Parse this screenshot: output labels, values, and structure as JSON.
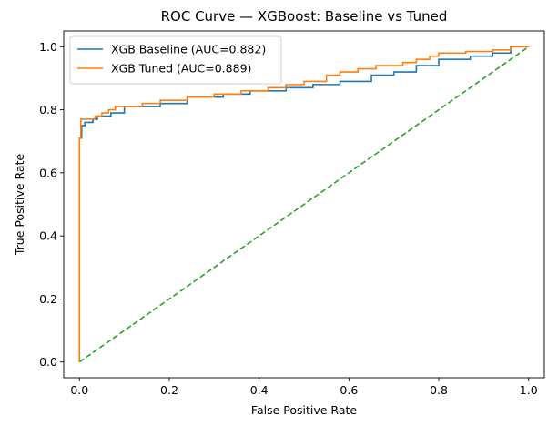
{
  "chart_data": {
    "type": "line",
    "title": "ROC Curve — XGBoost: Baseline vs Tuned",
    "xlabel": "False Positive Rate",
    "ylabel": "True Positive Rate",
    "xlim": [
      -0.035,
      1.035
    ],
    "ylim": [
      -0.05,
      1.05
    ],
    "xticks": [
      0.0,
      0.2,
      0.4,
      0.6,
      0.8,
      1.0
    ],
    "xtick_labels": [
      "0.0",
      "0.2",
      "0.4",
      "0.6",
      "0.8",
      "1.0"
    ],
    "yticks": [
      0.0,
      0.2,
      0.4,
      0.6,
      0.8,
      1.0
    ],
    "ytick_labels": [
      "0.0",
      "0.2",
      "0.4",
      "0.6",
      "0.8",
      "1.0"
    ],
    "grid": false,
    "legend_position": "top-left",
    "series": [
      {
        "name": "XGB Baseline (AUC=0.882)",
        "color": "#1f77b4",
        "x": [
          0.0,
          0.0,
          0.005,
          0.005,
          0.012,
          0.012,
          0.03,
          0.03,
          0.04,
          0.04,
          0.07,
          0.07,
          0.1,
          0.1,
          0.18,
          0.18,
          0.24,
          0.24,
          0.32,
          0.32,
          0.38,
          0.38,
          0.46,
          0.46,
          0.52,
          0.52,
          0.58,
          0.58,
          0.65,
          0.65,
          0.7,
          0.7,
          0.75,
          0.75,
          0.8,
          0.8,
          0.87,
          0.87,
          0.92,
          0.92,
          0.96,
          0.96,
          1.0
        ],
        "y": [
          0.0,
          0.71,
          0.71,
          0.75,
          0.75,
          0.76,
          0.76,
          0.77,
          0.77,
          0.78,
          0.78,
          0.79,
          0.79,
          0.81,
          0.81,
          0.82,
          0.82,
          0.84,
          0.84,
          0.85,
          0.85,
          0.86,
          0.86,
          0.87,
          0.87,
          0.88,
          0.88,
          0.89,
          0.89,
          0.91,
          0.91,
          0.92,
          0.92,
          0.94,
          0.94,
          0.96,
          0.96,
          0.97,
          0.97,
          0.98,
          0.98,
          1.0,
          1.0
        ]
      },
      {
        "name": "XGB Tuned (AUC=0.889)",
        "color": "#ff7f0e",
        "x": [
          0.0,
          0.0,
          0.003,
          0.003,
          0.035,
          0.035,
          0.05,
          0.05,
          0.065,
          0.065,
          0.08,
          0.08,
          0.14,
          0.14,
          0.18,
          0.18,
          0.24,
          0.24,
          0.3,
          0.3,
          0.36,
          0.36,
          0.42,
          0.42,
          0.46,
          0.46,
          0.5,
          0.5,
          0.55,
          0.55,
          0.58,
          0.58,
          0.62,
          0.62,
          0.66,
          0.66,
          0.72,
          0.72,
          0.75,
          0.75,
          0.78,
          0.78,
          0.8,
          0.8,
          0.86,
          0.86,
          0.92,
          0.92,
          0.96,
          0.96,
          1.0
        ],
        "y": [
          0.0,
          0.71,
          0.71,
          0.77,
          0.77,
          0.78,
          0.78,
          0.79,
          0.79,
          0.8,
          0.8,
          0.81,
          0.81,
          0.82,
          0.82,
          0.83,
          0.83,
          0.84,
          0.84,
          0.85,
          0.85,
          0.86,
          0.86,
          0.87,
          0.87,
          0.88,
          0.88,
          0.89,
          0.89,
          0.91,
          0.91,
          0.92,
          0.92,
          0.93,
          0.93,
          0.94,
          0.94,
          0.95,
          0.95,
          0.96,
          0.96,
          0.97,
          0.97,
          0.98,
          0.98,
          0.985,
          0.985,
          0.99,
          0.99,
          1.0,
          1.0
        ]
      },
      {
        "name": "",
        "color": "#2ca02c",
        "dashed": true,
        "x": [
          0.0,
          1.0
        ],
        "y": [
          0.0,
          1.0
        ]
      }
    ]
  }
}
